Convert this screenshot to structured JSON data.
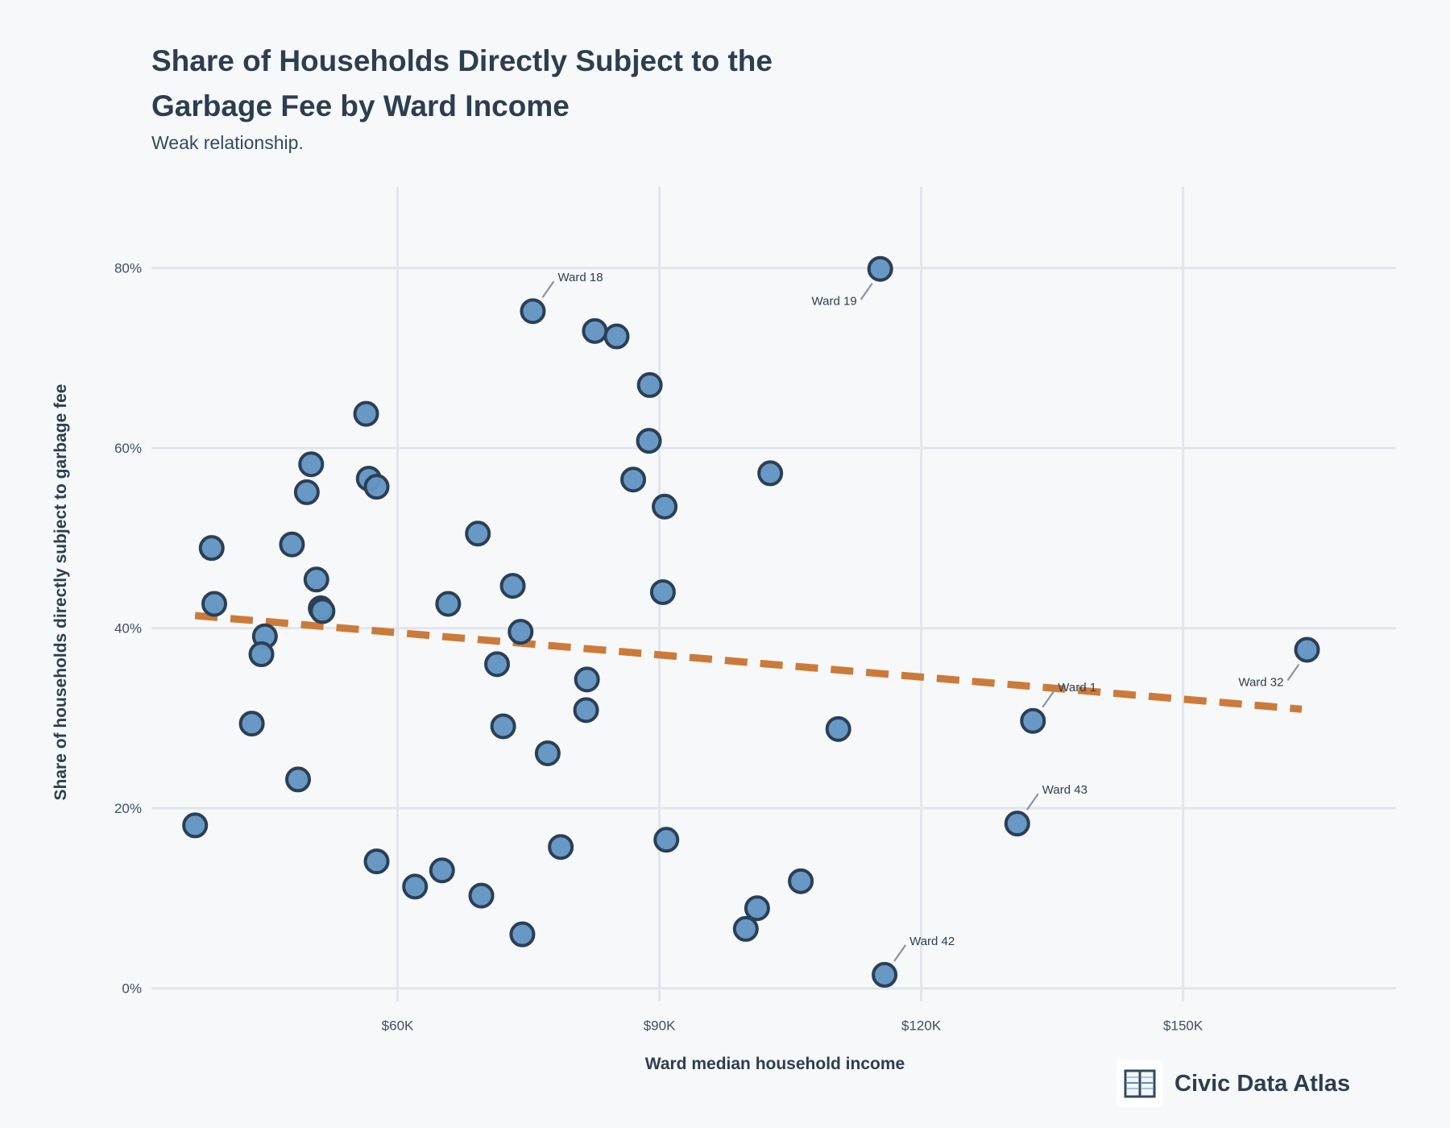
{
  "header": {
    "title": "Share of Households Directly Subject to the Garbage Fee by Ward Income",
    "subtitle": "Weak relationship."
  },
  "brand": {
    "icon": "open-book-icon",
    "name": "Civic Data Atlas"
  },
  "colors": {
    "background": "#f7f8fa",
    "point_fill": "#6396c3",
    "point_stroke": "#2b3f55",
    "trend_line": "#cc7a3a",
    "grid": "#e1e5ec",
    "text": "#2c3e50"
  },
  "chart_data": {
    "type": "scatter",
    "title": "Share of Households Directly Subject to the Garbage Fee by Ward Income",
    "subtitle": "Weak relationship.",
    "xlabel": "Ward median household income",
    "ylabel": "Share of households directly subject to garbage fee",
    "x_unit": "thousand USD",
    "y_unit": "percent",
    "xlim": [
      31.8,
      174.4
    ],
    "ylim": [
      0,
      89
    ],
    "grid": true,
    "legend": "none",
    "x_ticks": [
      {
        "value": 60,
        "label": "$60K"
      },
      {
        "value": 90,
        "label": "$90K"
      },
      {
        "value": 120,
        "label": "$120K"
      },
      {
        "value": 150,
        "label": "$150K"
      }
    ],
    "y_ticks": [
      {
        "value": 0,
        "label": "0%"
      },
      {
        "value": 20,
        "label": "20%"
      },
      {
        "value": 40,
        "label": "40%"
      },
      {
        "value": 60,
        "label": "60%"
      },
      {
        "value": 80,
        "label": "80%"
      }
    ],
    "series": [
      {
        "name": "Wards",
        "points": [
          {
            "x": 56.4,
            "y": 63.8
          },
          {
            "x": 50.1,
            "y": 58.2
          },
          {
            "x": 49.6,
            "y": 55.1
          },
          {
            "x": 56.7,
            "y": 56.6
          },
          {
            "x": 57.6,
            "y": 55.7
          },
          {
            "x": 38.7,
            "y": 48.9
          },
          {
            "x": 47.9,
            "y": 49.3
          },
          {
            "x": 50.7,
            "y": 45.4
          },
          {
            "x": 39.0,
            "y": 42.7
          },
          {
            "x": 51.2,
            "y": 42.2
          },
          {
            "x": 51.4,
            "y": 41.9
          },
          {
            "x": 44.8,
            "y": 39.1
          },
          {
            "x": 44.4,
            "y": 37.1
          },
          {
            "x": 43.3,
            "y": 29.4
          },
          {
            "x": 48.6,
            "y": 23.2
          },
          {
            "x": 36.8,
            "y": 18.1
          },
          {
            "x": 57.6,
            "y": 14.1
          },
          {
            "x": 75.5,
            "y": 75.2,
            "label": "Ward 18",
            "label_pos": "upper-right"
          },
          {
            "x": 82.6,
            "y": 73.0
          },
          {
            "x": 85.1,
            "y": 72.4
          },
          {
            "x": 88.9,
            "y": 67.0
          },
          {
            "x": 88.8,
            "y": 60.8
          },
          {
            "x": 87.0,
            "y": 56.5
          },
          {
            "x": 90.6,
            "y": 53.5
          },
          {
            "x": 69.2,
            "y": 50.5
          },
          {
            "x": 73.2,
            "y": 44.7
          },
          {
            "x": 90.4,
            "y": 44.0
          },
          {
            "x": 65.8,
            "y": 42.7
          },
          {
            "x": 74.1,
            "y": 39.6
          },
          {
            "x": 71.4,
            "y": 36.0
          },
          {
            "x": 81.7,
            "y": 34.3
          },
          {
            "x": 81.6,
            "y": 30.9
          },
          {
            "x": 72.1,
            "y": 29.1
          },
          {
            "x": 77.2,
            "y": 26.1
          },
          {
            "x": 78.7,
            "y": 15.7
          },
          {
            "x": 90.8,
            "y": 16.5
          },
          {
            "x": 65.1,
            "y": 13.1
          },
          {
            "x": 62.0,
            "y": 11.3
          },
          {
            "x": 69.6,
            "y": 10.3
          },
          {
            "x": 74.3,
            "y": 6.0
          },
          {
            "x": 115.3,
            "y": 79.9,
            "label": "Ward 19",
            "label_pos": "lower-left"
          },
          {
            "x": 102.7,
            "y": 57.2
          },
          {
            "x": 110.5,
            "y": 28.8
          },
          {
            "x": 106.2,
            "y": 11.9
          },
          {
            "x": 101.2,
            "y": 8.9
          },
          {
            "x": 99.9,
            "y": 6.6
          },
          {
            "x": 115.8,
            "y": 1.5,
            "label": "Ward 42",
            "label_pos": "upper-right"
          },
          {
            "x": 132.8,
            "y": 29.7,
            "label": "Ward 1",
            "label_pos": "upper-right"
          },
          {
            "x": 131.0,
            "y": 18.3,
            "label": "Ward 43",
            "label_pos": "upper-right"
          },
          {
            "x": 164.2,
            "y": 37.6,
            "label": "Ward 32",
            "label_pos": "lower-left"
          }
        ]
      }
    ],
    "trend_line": {
      "style": "dashed",
      "x": [
        36.8,
        163.6
      ],
      "y": [
        41.4,
        31.0
      ]
    }
  }
}
